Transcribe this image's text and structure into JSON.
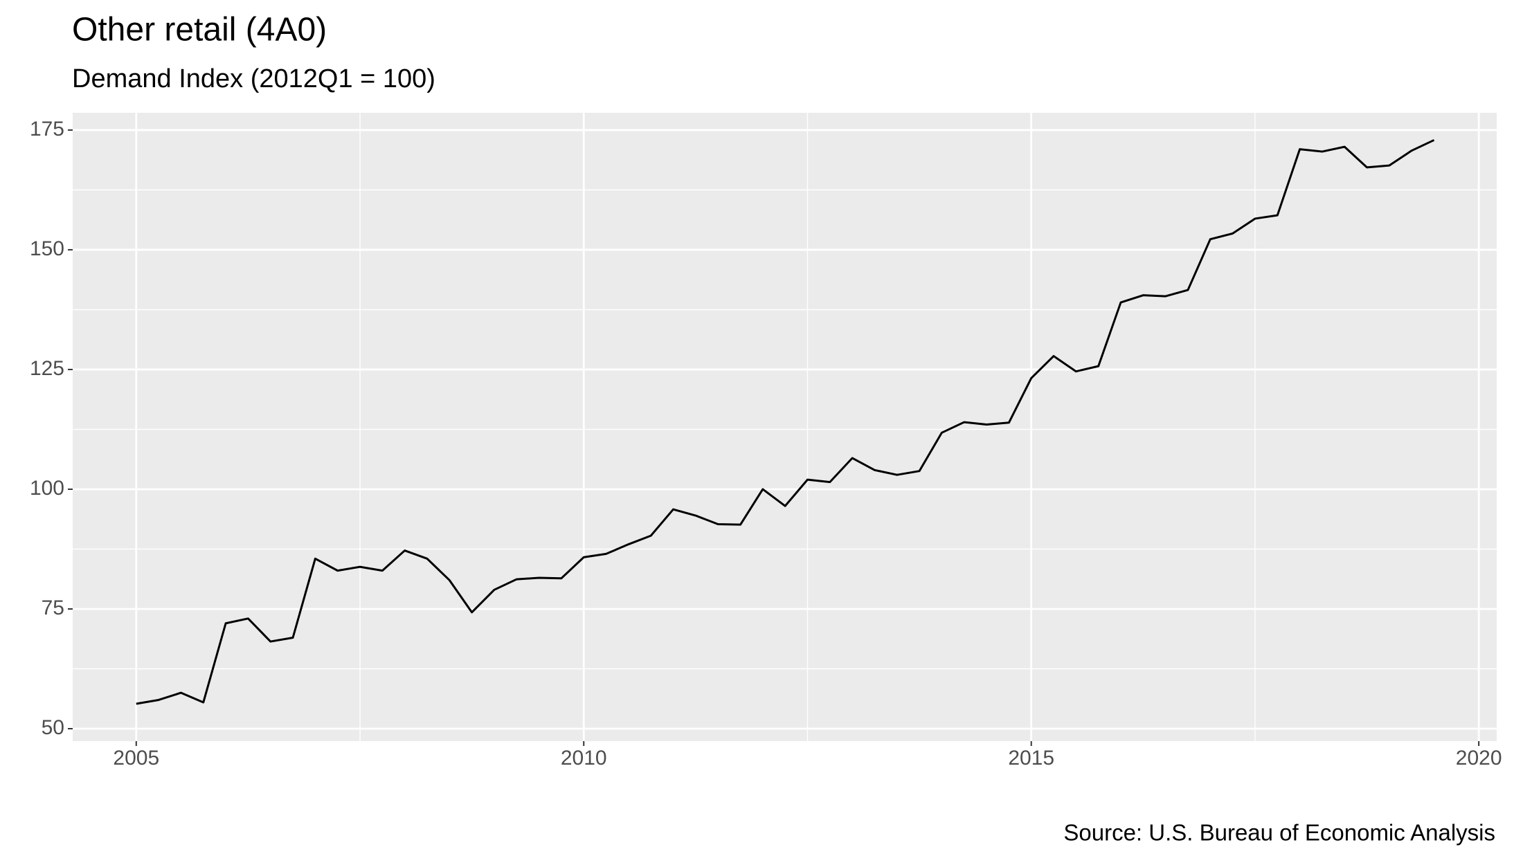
{
  "chart_data": {
    "type": "line",
    "title": "Other retail (4A0)",
    "subtitle": "Demand Index (2012Q1 = 100)",
    "source": "Source: U.S. Bureau of Economic Analysis",
    "x": [
      2005,
      2005.25,
      2005.5,
      2005.75,
      2006,
      2006.25,
      2006.5,
      2006.75,
      2007,
      2007.25,
      2007.5,
      2007.75,
      2008,
      2008.25,
      2008.5,
      2008.75,
      2009,
      2009.25,
      2009.5,
      2009.75,
      2010,
      2010.25,
      2010.5,
      2010.75,
      2011,
      2011.25,
      2011.5,
      2011.75,
      2012,
      2012.25,
      2012.5,
      2012.75,
      2013,
      2013.25,
      2013.5,
      2013.75,
      2014,
      2014.25,
      2014.5,
      2014.75,
      2015,
      2015.25,
      2015.5,
      2015.75,
      2016,
      2016.25,
      2016.5,
      2016.75,
      2017,
      2017.25,
      2017.5,
      2017.75,
      2018,
      2018.25,
      2018.5,
      2018.75,
      2019,
      2019.25,
      2019.5
    ],
    "series": [
      {
        "color": "#000000",
        "values": [
          55.2,
          56,
          57.5,
          55.5,
          72,
          73,
          68.2,
          69,
          85.5,
          83,
          83.8,
          83,
          87.2,
          85.5,
          81,
          74.3,
          79,
          81.2,
          81.5,
          81.4,
          85.8,
          86.5,
          88.5,
          90.3,
          95.8,
          94.5,
          92.7,
          92.6,
          100,
          96.5,
          102,
          101.5,
          106.5,
          104,
          103,
          103.8,
          111.8,
          114,
          113.5,
          113.9,
          123.2,
          127.8,
          124.6,
          125.7,
          139,
          140.5,
          140.3,
          141.6,
          152.2,
          153.4,
          156.5,
          157.2,
          171,
          170.5,
          171.5,
          167.2,
          167.6,
          170.7,
          172.9
        ]
      }
    ],
    "xlim": [
      2004.29,
      2020.2
    ],
    "ylim": [
      47.4,
      178.6
    ],
    "xticks": [
      2005,
      2010,
      2015,
      2020
    ],
    "yticks": [
      50,
      75,
      100,
      125,
      150,
      175
    ],
    "xminor": [
      2007.5,
      2012.5,
      2017.5
    ],
    "yminor": [
      62.5,
      87.5,
      112.5,
      137.5,
      162.5
    ],
    "grid": true
  }
}
